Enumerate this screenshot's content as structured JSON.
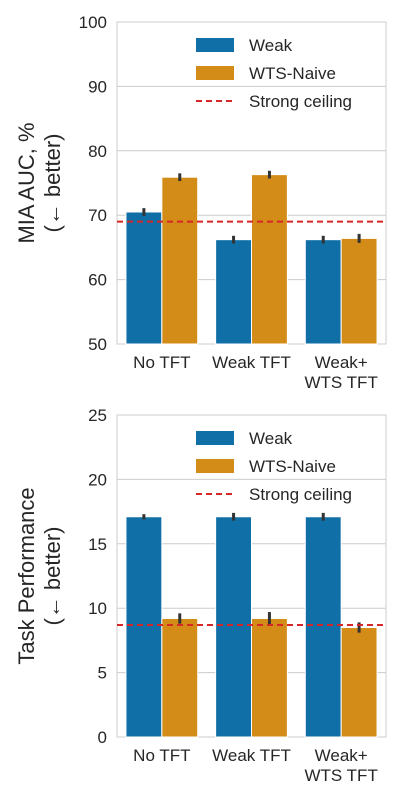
{
  "chart_data": [
    {
      "type": "bar",
      "ylabel_lines": [
        "MIA AUC, %",
        "(← better)"
      ],
      "xlabel": "",
      "categories": [
        [
          "No TFT"
        ],
        [
          "Weak TFT"
        ],
        [
          "Weak+",
          "WTS TFT"
        ]
      ],
      "series": [
        {
          "name": "Weak",
          "values": [
            70.5,
            66.2,
            66.2
          ],
          "err": [
            0.6,
            0.6,
            0.6
          ]
        },
        {
          "name": "WTS-Naive",
          "values": [
            75.9,
            76.3,
            66.4
          ],
          "err": [
            0.6,
            0.6,
            0.7
          ]
        }
      ],
      "reference_line": {
        "name": "Strong ceiling",
        "value": 69.0
      },
      "ylim": [
        50,
        100
      ],
      "yticks": [
        50,
        60,
        70,
        80,
        90,
        100
      ],
      "grid": true,
      "legend_position": "top-center"
    },
    {
      "type": "bar",
      "ylabel_lines": [
        "Task Performance",
        "(← better)"
      ],
      "xlabel": "",
      "categories": [
        [
          "No TFT"
        ],
        [
          "Weak TFT"
        ],
        [
          "Weak+",
          "WTS TFT"
        ]
      ],
      "series": [
        {
          "name": "Weak",
          "values": [
            17.1,
            17.1,
            17.1
          ],
          "err": [
            0.2,
            0.3,
            0.3
          ]
        },
        {
          "name": "WTS-Naive",
          "values": [
            9.2,
            9.2,
            8.5
          ],
          "err": [
            0.4,
            0.5,
            0.4
          ]
        }
      ],
      "reference_line": {
        "name": "Strong ceiling",
        "value": 8.7
      },
      "ylim": [
        0,
        25
      ],
      "yticks": [
        0,
        5,
        10,
        15,
        20,
        25
      ],
      "grid": true,
      "legend_position": "top-center"
    }
  ],
  "colors": {
    "weak": "#0f6fa6",
    "wts_naive": "#d48c18",
    "strong_ceiling": "#d62728",
    "grid": "#cccccc",
    "errbar": "#333333"
  }
}
